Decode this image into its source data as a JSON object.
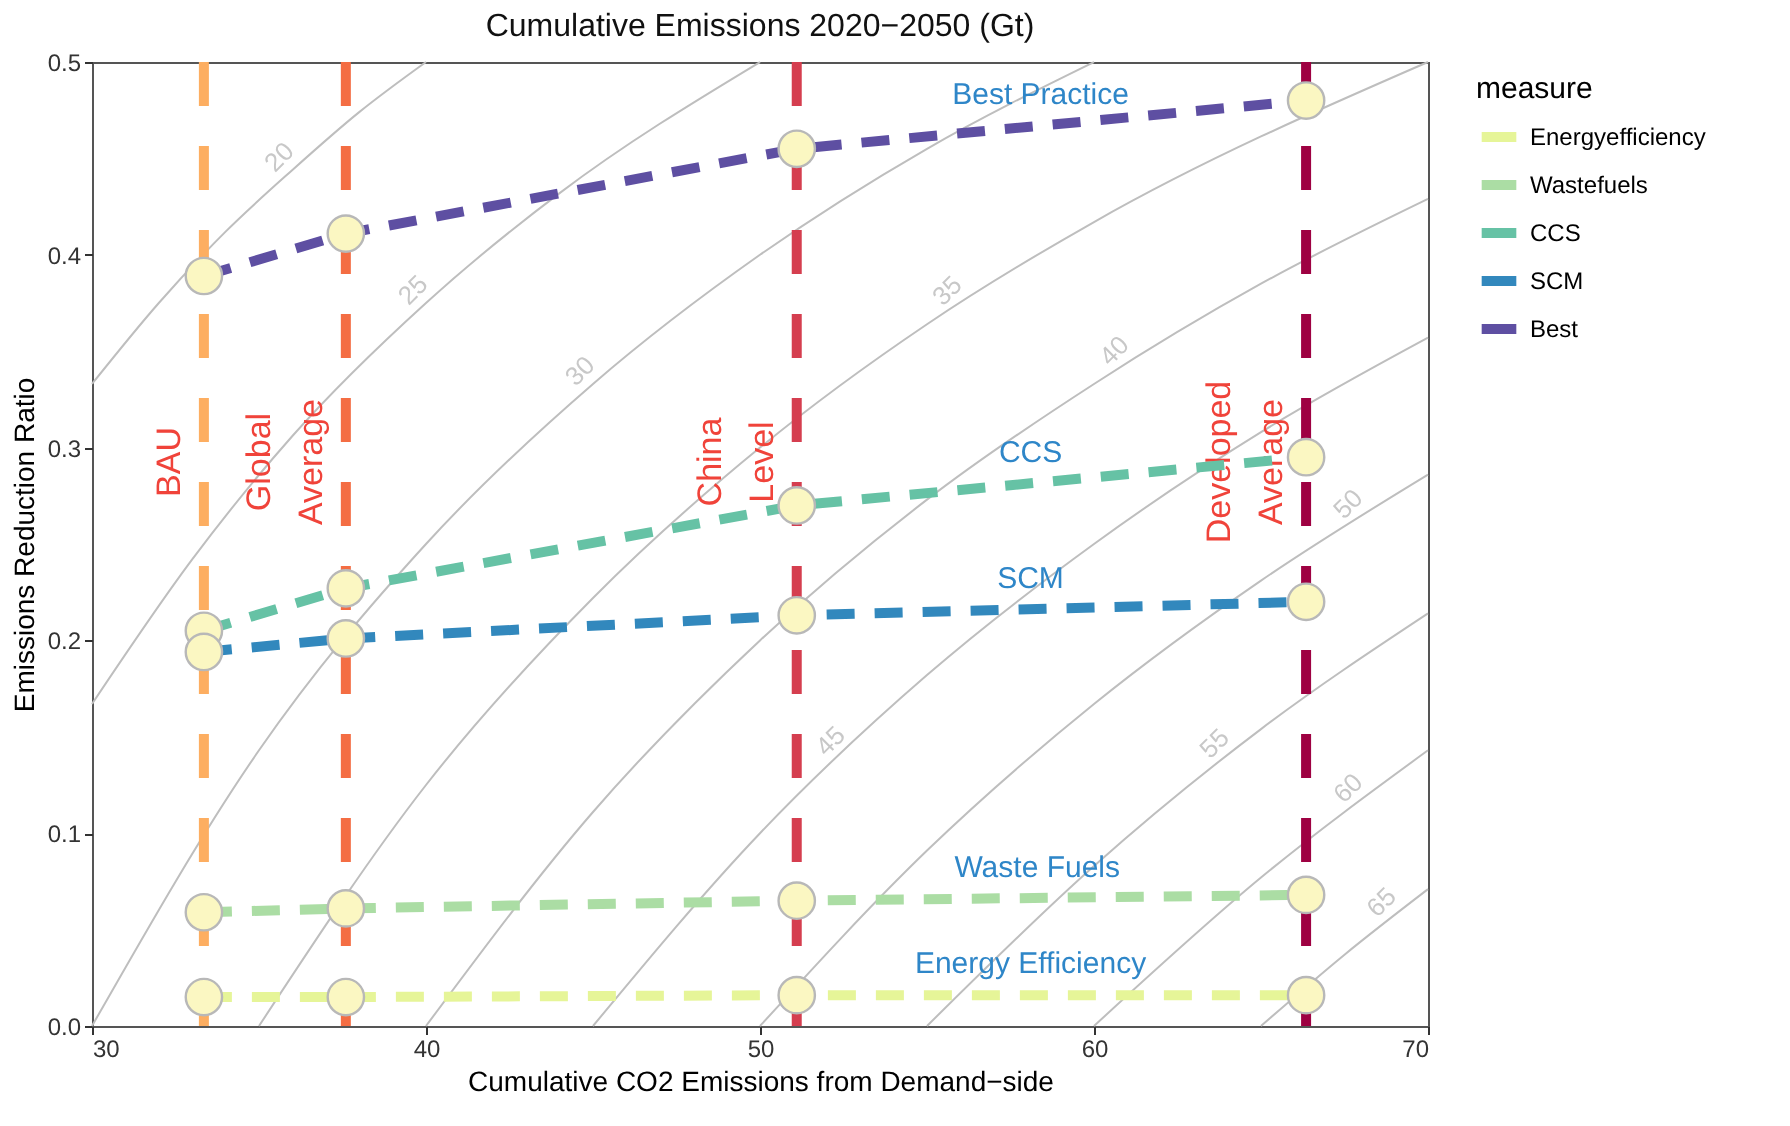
{
  "chart_data": {
    "type": "line",
    "title": "Cumulative Emissions 2020−2050 (Gt)",
    "xlabel": "Cumulative CO2 Emissions from Demand−side",
    "ylabel": "Emissions Reduction Ratio",
    "legend_title": "measure",
    "legend": "right",
    "grid": false,
    "marker": "circle",
    "line_style": "dashed",
    "xlim": [
      30,
      70
    ],
    "xticks": [
      30,
      40,
      50,
      60,
      70
    ],
    "ylim": [
      0,
      0.5
    ],
    "yticks": [
      {
        "value": 0,
        "label": "0.0"
      },
      0.1,
      0.2,
      0.3,
      0.4,
      0.5
    ],
    "x": [
      33.35,
      37.6,
      51.1,
      66.35
    ],
    "series": [
      {
        "type": "line",
        "name": "20",
        "color": "#bebebe",
        "line_style": "solid",
        "marker": "none",
        "x": [
          30,
          32,
          34,
          36,
          38,
          40
        ],
        "values": [
          0.333,
          0.375,
          0.412,
          0.444,
          0.474,
          0.5
        ]
      },
      {
        "type": "line",
        "name": "25",
        "color": "#bebebe",
        "line_style": "solid",
        "marker": "none",
        "x": [
          30,
          33,
          36,
          40,
          44,
          50
        ],
        "values": [
          0.167,
          0.242,
          0.306,
          0.375,
          0.432,
          0.5
        ]
      },
      {
        "type": "line",
        "name": "30",
        "color": "#bebebe",
        "line_style": "solid",
        "marker": "none",
        "x": [
          30,
          35,
          40,
          45,
          50,
          55,
          60
        ],
        "values": [
          0,
          0.143,
          0.25,
          0.333,
          0.4,
          0.455,
          0.5
        ]
      },
      {
        "type": "line",
        "name": "35",
        "color": "#bebebe",
        "line_style": "solid",
        "marker": "none",
        "x": [
          35,
          40,
          45,
          50,
          55,
          60,
          70
        ],
        "values": [
          0,
          0.125,
          0.222,
          0.3,
          0.364,
          0.417,
          0.5
        ]
      },
      {
        "type": "line",
        "name": "40",
        "color": "#bebebe",
        "line_style": "solid",
        "marker": "none",
        "x": [
          40,
          45,
          50,
          55,
          60,
          65,
          70
        ],
        "values": [
          0,
          0.111,
          0.2,
          0.273,
          0.333,
          0.385,
          0.429
        ]
      },
      {
        "type": "line",
        "name": "45",
        "color": "#bebebe",
        "line_style": "solid",
        "marker": "none",
        "x": [
          45,
          50,
          55,
          60,
          65,
          70
        ],
        "values": [
          0,
          0.1,
          0.182,
          0.25,
          0.308,
          0.357
        ]
      },
      {
        "type": "line",
        "name": "50",
        "color": "#bebebe",
        "line_style": "solid",
        "marker": "none",
        "x": [
          50,
          55,
          60,
          65,
          70
        ],
        "values": [
          0,
          0.091,
          0.167,
          0.231,
          0.286
        ]
      },
      {
        "type": "line",
        "name": "55",
        "color": "#bebebe",
        "line_style": "solid",
        "marker": "none",
        "x": [
          55,
          60,
          65,
          70
        ],
        "values": [
          0,
          0.083,
          0.154,
          0.214
        ]
      },
      {
        "type": "line",
        "name": "60",
        "color": "#bebebe",
        "line_style": "solid",
        "marker": "none",
        "x": [
          60,
          65,
          70
        ],
        "values": [
          0,
          0.077,
          0.143
        ]
      },
      {
        "type": "line",
        "name": "65",
        "color": "#bebebe",
        "line_style": "solid",
        "marker": "none",
        "x": [
          65,
          67.5,
          70
        ],
        "values": [
          0,
          0.037,
          0.071
        ]
      },
      {
        "name": "Energyefficiency",
        "color": "#e6f598",
        "values": [
          0.015,
          0.015,
          0.016,
          0.016
        ]
      },
      {
        "name": "Wastefuels",
        "color": "#abdda4",
        "values": [
          0.059,
          0.061,
          0.065,
          0.068
        ]
      },
      {
        "name": "CCS",
        "color": "#66c2a5",
        "values": [
          0.205,
          0.227,
          0.27,
          0.295
        ]
      },
      {
        "name": "SCM",
        "color": "#3288bd",
        "values": [
          0.194,
          0.201,
          0.213,
          0.22
        ]
      },
      {
        "name": "Best",
        "color": "#5e4fa2",
        "values": [
          0.389,
          0.411,
          0.455,
          0.48
        ]
      }
    ],
    "ref_lines": [
      {
        "axis": "x",
        "value": 33.35,
        "label": "BAU",
        "color": "#fdae61",
        "line_style": "dashed"
      },
      {
        "axis": "x",
        "value": 37.6,
        "label": "Global\nAverage",
        "color": "#f46d43",
        "line_style": "dashed"
      },
      {
        "axis": "x",
        "value": 51.1,
        "label": "China\nLevel",
        "color": "#d53e4f",
        "line_style": "dashed"
      },
      {
        "axis": "x",
        "value": 66.35,
        "label": "Developed\nAverage",
        "color": "#9e0142",
        "line_style": "dashed"
      }
    ],
    "annotations": [
      {
        "text": "Best Practice",
        "x": 58.4,
        "y": 0.467
      },
      {
        "text": "CCS",
        "x": 58.1,
        "y": 0.281
      },
      {
        "text": "SCM",
        "x": 58.1,
        "y": 0.216
      },
      {
        "text": "Waste Fuels",
        "x": 58.3,
        "y": 0.066
      },
      {
        "text": "Energy Efficiency",
        "x": 58.1,
        "y": 0.016
      }
    ]
  }
}
